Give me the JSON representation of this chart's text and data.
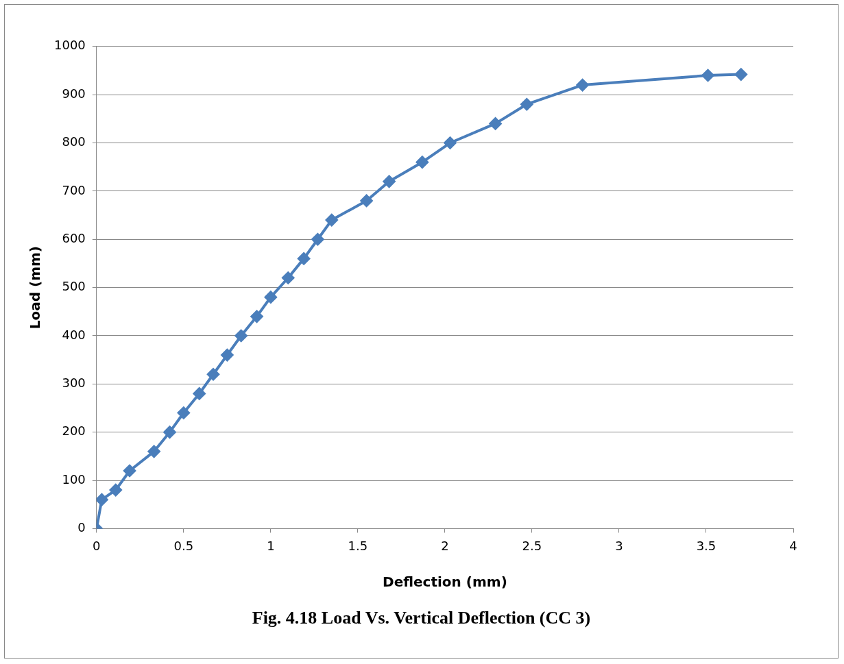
{
  "chart_data": {
    "type": "line",
    "title": "Fig. 4.18 Load Vs. Vertical Deflection (CC 3)",
    "xlabel": "Deflection (mm)",
    "ylabel": "Load (mm)",
    "series": [
      {
        "color": "#4a7ebb",
        "x": [
          0,
          0.03,
          0.11,
          0.19,
          0.33,
          0.42,
          0.5,
          0.59,
          0.67,
          0.75,
          0.83,
          0.92,
          1.0,
          1.1,
          1.19,
          1.27,
          1.35,
          1.55,
          1.68,
          1.87,
          2.03,
          2.29,
          2.47,
          2.79,
          3.51,
          3.7
        ],
        "values": [
          0,
          60,
          80,
          120,
          160,
          200,
          240,
          280,
          320,
          360,
          400,
          440,
          480,
          520,
          560,
          600,
          640,
          680,
          720,
          760,
          800,
          840,
          880,
          920,
          940,
          942
        ]
      }
    ],
    "xlim": [
      0,
      4
    ],
    "xticks": [
      0,
      0.5,
      1,
      1.5,
      2,
      2.5,
      3,
      3.5,
      4
    ],
    "ylim": [
      0,
      1000
    ],
    "yticks": [
      0,
      100,
      200,
      300,
      400,
      500,
      600,
      700,
      800,
      900,
      1000
    ],
    "grid": "y",
    "legend": false,
    "marker": "diamond",
    "line_style": "solid"
  }
}
